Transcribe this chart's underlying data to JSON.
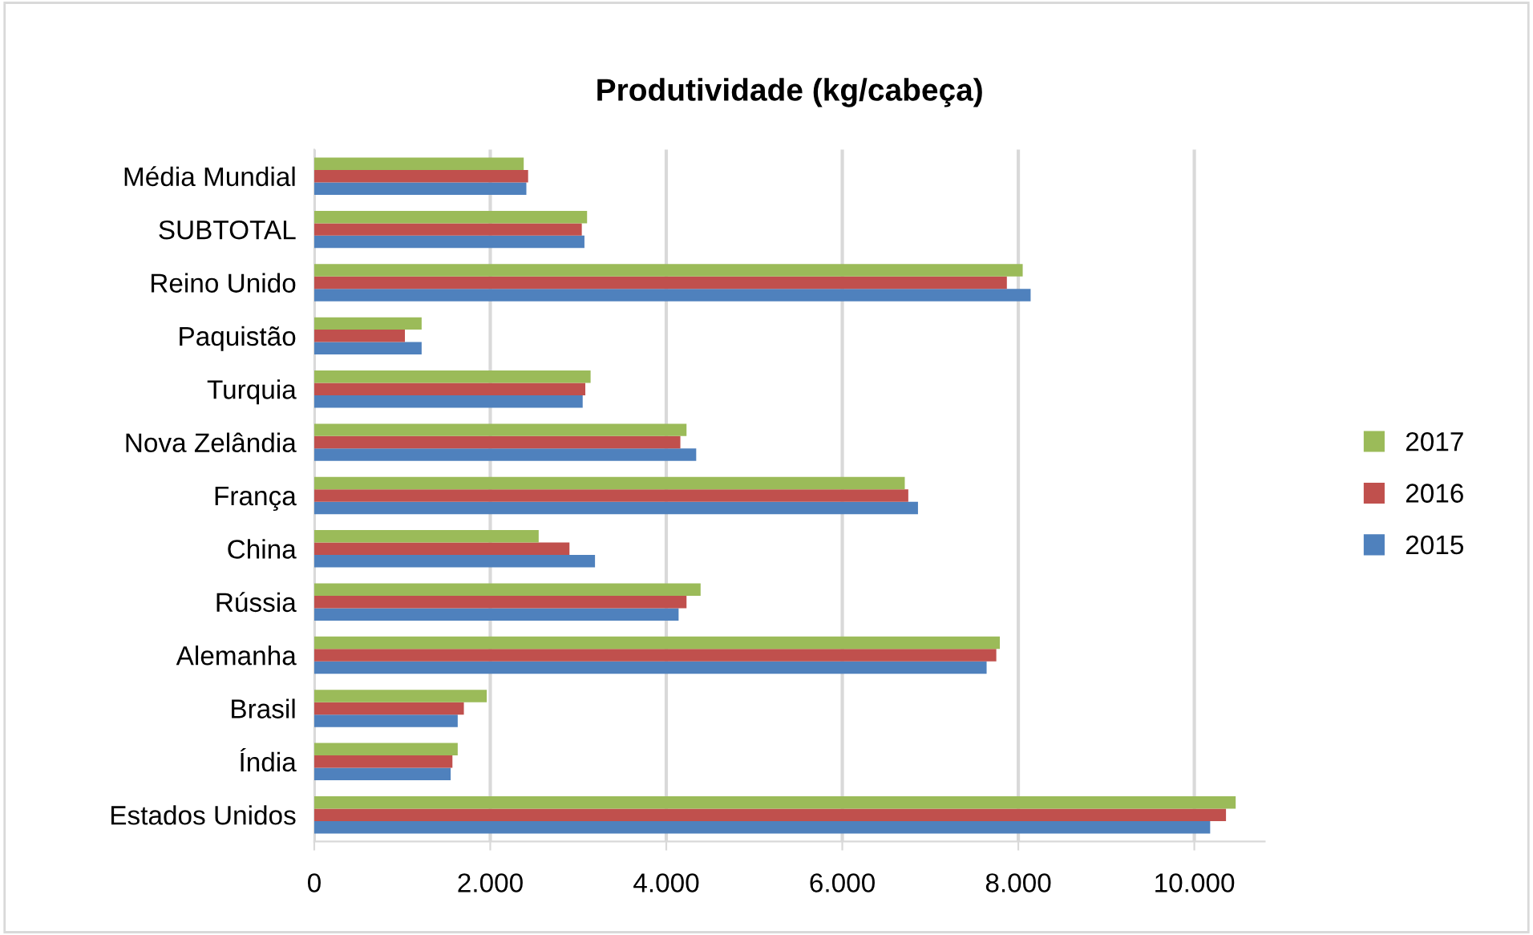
{
  "chart_data": {
    "type": "bar",
    "orientation": "horizontal",
    "title": "Produtividade (kg/cabeça)",
    "categories": [
      "Média Mundial",
      "SUBTOTAL",
      "Reino Unido",
      "Paquistão",
      "Turquia",
      "Nova Zelândia",
      "França",
      "China",
      "Rússia",
      "Alemanha",
      "Brasil",
      "Índia",
      "Estados Unidos"
    ],
    "series": [
      {
        "name": "2015",
        "color": "#4f81bd",
        "values": [
          2410,
          3070,
          8140,
          1220,
          3050,
          4340,
          6860,
          3190,
          4140,
          7640,
          1630,
          1550,
          10180
        ]
      },
      {
        "name": "2016",
        "color": "#c0504d",
        "values": [
          2430,
          3040,
          7870,
          1030,
          3080,
          4160,
          6750,
          2900,
          4230,
          7750,
          1700,
          1570,
          10360
        ]
      },
      {
        "name": "2017",
        "color": "#9bbb59",
        "values": [
          2380,
          3100,
          8050,
          1220,
          3140,
          4230,
          6710,
          2550,
          4390,
          7790,
          1960,
          1630,
          10470
        ]
      }
    ],
    "xlim": [
      0,
      10800
    ],
    "xticks": [
      {
        "value": 0,
        "label": "0"
      },
      {
        "value": 2000,
        "label": "2.000"
      },
      {
        "value": 4000,
        "label": "4.000"
      },
      {
        "value": 6000,
        "label": "6.000"
      },
      {
        "value": 8000,
        "label": "8.000"
      },
      {
        "value": 10000,
        "label": "10.000"
      }
    ],
    "grid": "x",
    "legend": "right"
  }
}
